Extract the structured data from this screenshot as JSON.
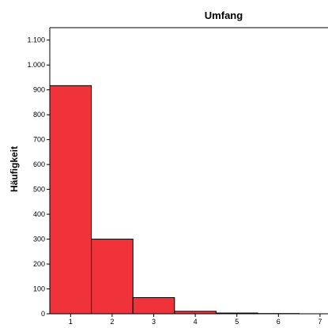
{
  "chart_data": {
    "type": "bar",
    "title": "Umfang",
    "xlabel": "",
    "ylabel": "Häufigkeit",
    "categories": [
      "1",
      "2",
      "3",
      "4",
      "5",
      "6",
      "7"
    ],
    "values": [
      917,
      300,
      65,
      10,
      3,
      1,
      0
    ],
    "ylim": [
      0,
      1150
    ],
    "yticks": [
      0,
      100,
      200,
      300,
      400,
      500,
      600,
      700,
      800,
      900,
      1000,
      1100
    ],
    "ytick_labels": [
      "0",
      "100",
      "200",
      "300",
      "400",
      "500",
      "600",
      "700",
      "800",
      "900",
      "1.000",
      "1.100"
    ],
    "grid": false,
    "bar_color": "#f0333b",
    "bar_edge_color": "#000000"
  }
}
